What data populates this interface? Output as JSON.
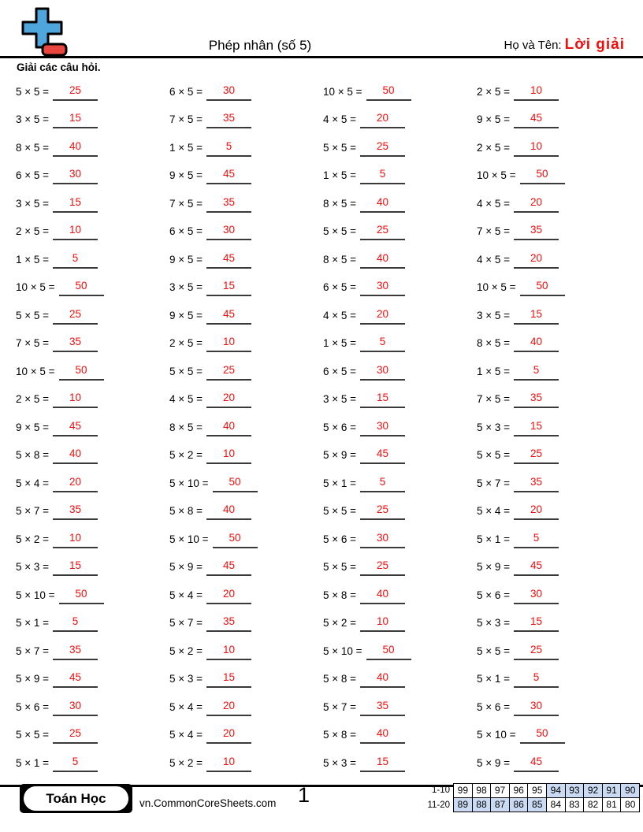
{
  "header": {
    "title": "Phép nhân (số 5)",
    "name_label": "Họ và Tên:",
    "name_value": "Lời giải",
    "instruction": "Giải các câu hỏi."
  },
  "colors": {
    "answer_red": "#f20d0d",
    "table_highlight": "#c9daf2",
    "logo_blue": "#4ea6dc",
    "logo_red": "#e8463f"
  },
  "worksheet": {
    "columns": [
      {
        "problems": [
          {
            "q": "5 × 5 =",
            "a": "25"
          },
          {
            "q": "3 × 5 =",
            "a": "15"
          },
          {
            "q": "8 × 5 =",
            "a": "40"
          },
          {
            "q": "6 × 5 =",
            "a": "30"
          },
          {
            "q": "3 × 5 =",
            "a": "15"
          },
          {
            "q": "2 × 5 =",
            "a": "10"
          },
          {
            "q": "1 × 5 =",
            "a": "5"
          },
          {
            "q": "10 × 5 =",
            "a": "50"
          },
          {
            "q": "5 × 5 =",
            "a": "25"
          },
          {
            "q": "7 × 5 =",
            "a": "35"
          },
          {
            "q": "10 × 5 =",
            "a": "50"
          },
          {
            "q": "2 × 5 =",
            "a": "10"
          },
          {
            "q": "9 × 5 =",
            "a": "45"
          },
          {
            "q": "5 × 8 =",
            "a": "40"
          },
          {
            "q": "5 × 4 =",
            "a": "20"
          },
          {
            "q": "5 × 7 =",
            "a": "35"
          },
          {
            "q": "5 × 2 =",
            "a": "10"
          },
          {
            "q": "5 × 3 =",
            "a": "15"
          },
          {
            "q": "5 × 10 =",
            "a": "50"
          },
          {
            "q": "5 × 1 =",
            "a": "5"
          },
          {
            "q": "5 × 7 =",
            "a": "35"
          },
          {
            "q": "5 × 9 =",
            "a": "45"
          },
          {
            "q": "5 × 6 =",
            "a": "30"
          },
          {
            "q": "5 × 5 =",
            "a": "25"
          },
          {
            "q": "5 × 1 =",
            "a": "5"
          }
        ]
      },
      {
        "problems": [
          {
            "q": "6 × 5 =",
            "a": "30"
          },
          {
            "q": "7 × 5 =",
            "a": "35"
          },
          {
            "q": "1 × 5 =",
            "a": "5"
          },
          {
            "q": "9 × 5 =",
            "a": "45"
          },
          {
            "q": "7 × 5 =",
            "a": "35"
          },
          {
            "q": "6 × 5 =",
            "a": "30"
          },
          {
            "q": "9 × 5 =",
            "a": "45"
          },
          {
            "q": "3 × 5 =",
            "a": "15"
          },
          {
            "q": "9 × 5 =",
            "a": "45"
          },
          {
            "q": "2 × 5 =",
            "a": "10"
          },
          {
            "q": "5 × 5 =",
            "a": "25"
          },
          {
            "q": "4 × 5 =",
            "a": "20"
          },
          {
            "q": "8 × 5 =",
            "a": "40"
          },
          {
            "q": "5 × 2 =",
            "a": "10"
          },
          {
            "q": "5 × 10 =",
            "a": "50"
          },
          {
            "q": "5 × 8 =",
            "a": "40"
          },
          {
            "q": "5 × 10 =",
            "a": "50"
          },
          {
            "q": "5 × 9 =",
            "a": "45"
          },
          {
            "q": "5 × 4 =",
            "a": "20"
          },
          {
            "q": "5 × 7 =",
            "a": "35"
          },
          {
            "q": "5 × 2 =",
            "a": "10"
          },
          {
            "q": "5 × 3 =",
            "a": "15"
          },
          {
            "q": "5 × 4 =",
            "a": "20"
          },
          {
            "q": "5 × 4 =",
            "a": "20"
          },
          {
            "q": "5 × 2 =",
            "a": "10"
          }
        ]
      },
      {
        "problems": [
          {
            "q": "10 × 5 =",
            "a": "50"
          },
          {
            "q": "4 × 5 =",
            "a": "20"
          },
          {
            "q": "5 × 5 =",
            "a": "25"
          },
          {
            "q": "1 × 5 =",
            "a": "5"
          },
          {
            "q": "8 × 5 =",
            "a": "40"
          },
          {
            "q": "5 × 5 =",
            "a": "25"
          },
          {
            "q": "8 × 5 =",
            "a": "40"
          },
          {
            "q": "6 × 5 =",
            "a": "30"
          },
          {
            "q": "4 × 5 =",
            "a": "20"
          },
          {
            "q": "1 × 5 =",
            "a": "5"
          },
          {
            "q": "6 × 5 =",
            "a": "30"
          },
          {
            "q": "3 × 5 =",
            "a": "15"
          },
          {
            "q": "5 × 6 =",
            "a": "30"
          },
          {
            "q": "5 × 9 =",
            "a": "45"
          },
          {
            "q": "5 × 1 =",
            "a": "5"
          },
          {
            "q": "5 × 5 =",
            "a": "25"
          },
          {
            "q": "5 × 6 =",
            "a": "30"
          },
          {
            "q": "5 × 5 =",
            "a": "25"
          },
          {
            "q": "5 × 8 =",
            "a": "40"
          },
          {
            "q": "5 × 2 =",
            "a": "10"
          },
          {
            "q": "5 × 10 =",
            "a": "50"
          },
          {
            "q": "5 × 8 =",
            "a": "40"
          },
          {
            "q": "5 × 7 =",
            "a": "35"
          },
          {
            "q": "5 × 8 =",
            "a": "40"
          },
          {
            "q": "5 × 3 =",
            "a": "15"
          }
        ]
      },
      {
        "problems": [
          {
            "q": "2 × 5 =",
            "a": "10"
          },
          {
            "q": "9 × 5 =",
            "a": "45"
          },
          {
            "q": "2 × 5 =",
            "a": "10"
          },
          {
            "q": "10 × 5 =",
            "a": "50"
          },
          {
            "q": "4 × 5 =",
            "a": "20"
          },
          {
            "q": "7 × 5 =",
            "a": "35"
          },
          {
            "q": "4 × 5 =",
            "a": "20"
          },
          {
            "q": "10 × 5 =",
            "a": "50"
          },
          {
            "q": "3 × 5 =",
            "a": "15"
          },
          {
            "q": "8 × 5 =",
            "a": "40"
          },
          {
            "q": "1 × 5 =",
            "a": "5"
          },
          {
            "q": "7 × 5 =",
            "a": "35"
          },
          {
            "q": "5 × 3 =",
            "a": "15"
          },
          {
            "q": "5 × 5 =",
            "a": "25"
          },
          {
            "q": "5 × 7 =",
            "a": "35"
          },
          {
            "q": "5 × 4 =",
            "a": "20"
          },
          {
            "q": "5 × 1 =",
            "a": "5"
          },
          {
            "q": "5 × 9 =",
            "a": "45"
          },
          {
            "q": "5 × 6 =",
            "a": "30"
          },
          {
            "q": "5 × 3 =",
            "a": "15"
          },
          {
            "q": "5 × 5 =",
            "a": "25"
          },
          {
            "q": "5 × 1 =",
            "a": "5"
          },
          {
            "q": "5 × 6 =",
            "a": "30"
          },
          {
            "q": "5 × 10 =",
            "a": "50"
          },
          {
            "q": "5 × 9 =",
            "a": "45"
          }
        ]
      }
    ]
  },
  "footer": {
    "brand": "Toán Học",
    "website": "vn.CommonCoreSheets.com",
    "page_number": "1",
    "score_table": {
      "rows": [
        {
          "label": "1-10",
          "cells": [
            {
              "v": "99",
              "hl": false
            },
            {
              "v": "98",
              "hl": false
            },
            {
              "v": "97",
              "hl": false
            },
            {
              "v": "96",
              "hl": false
            },
            {
              "v": "95",
              "hl": false
            },
            {
              "v": "94",
              "hl": true
            },
            {
              "v": "93",
              "hl": true
            },
            {
              "v": "92",
              "hl": true
            },
            {
              "v": "91",
              "hl": true
            },
            {
              "v": "90",
              "hl": true
            }
          ]
        },
        {
          "label": "11-20",
          "cells": [
            {
              "v": "89",
              "hl": true
            },
            {
              "v": "88",
              "hl": true
            },
            {
              "v": "87",
              "hl": true
            },
            {
              "v": "86",
              "hl": true
            },
            {
              "v": "85",
              "hl": true
            },
            {
              "v": "84",
              "hl": false
            },
            {
              "v": "83",
              "hl": false
            },
            {
              "v": "82",
              "hl": false
            },
            {
              "v": "81",
              "hl": false
            },
            {
              "v": "80",
              "hl": false
            }
          ]
        }
      ]
    }
  }
}
